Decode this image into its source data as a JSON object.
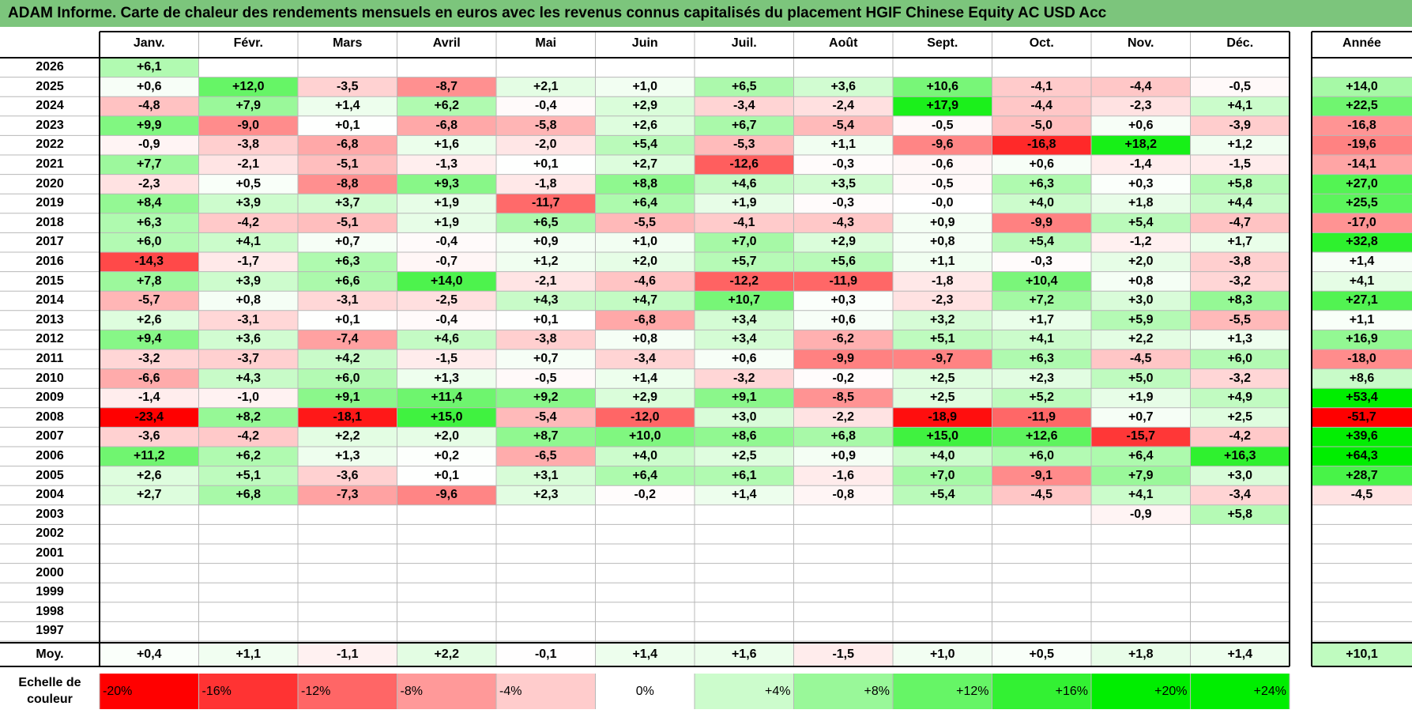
{
  "title": "ADAM Informe. Carte de chaleur des rendements mensuels en euros avec les revenus connus capitalisés du placement HGIF Chinese Equity AC USD Acc",
  "chart_data": {
    "type": "heatmap",
    "title": "ADAM Informe. Carte de chaleur des rendements mensuels en euros avec les revenus connus capitalisés du placement HGIF Chinese Equity AC USD Acc",
    "columns": [
      "Janv.",
      "Févr.",
      "Mars",
      "Avril",
      "Mai",
      "Juin",
      "Juil.",
      "Août",
      "Sept.",
      "Oct.",
      "Nov.",
      "Déc."
    ],
    "year_header": "Année",
    "rows": [
      {
        "year": "2026",
        "months": [
          "+6,1",
          "",
          "",
          "",
          "",
          "",
          "",
          "",
          "",
          "",
          "",
          ""
        ],
        "annual": ""
      },
      {
        "year": "2025",
        "months": [
          "+0,6",
          "+12,0",
          "-3,5",
          "-8,7",
          "+2,1",
          "+1,0",
          "+6,5",
          "+3,6",
          "+10,6",
          "-4,1",
          "-4,4",
          "-0,5"
        ],
        "annual": "+14,0"
      },
      {
        "year": "2024",
        "months": [
          "-4,8",
          "+7,9",
          "+1,4",
          "+6,2",
          "-0,4",
          "+2,9",
          "-3,4",
          "-2,4",
          "+17,9",
          "-4,4",
          "-2,3",
          "+4,1"
        ],
        "annual": "+22,5"
      },
      {
        "year": "2023",
        "months": [
          "+9,9",
          "-9,0",
          "+0,1",
          "-6,8",
          "-5,8",
          "+2,6",
          "+6,7",
          "-5,4",
          "-0,5",
          "-5,0",
          "+0,6",
          "-3,9"
        ],
        "annual": "-16,8"
      },
      {
        "year": "2022",
        "months": [
          "-0,9",
          "-3,8",
          "-6,8",
          "+1,6",
          "-2,0",
          "+5,4",
          "-5,3",
          "+1,1",
          "-9,6",
          "-16,8",
          "+18,2",
          "+1,2"
        ],
        "annual": "-19,6"
      },
      {
        "year": "2021",
        "months": [
          "+7,7",
          "-2,1",
          "-5,1",
          "-1,3",
          "+0,1",
          "+2,7",
          "-12,6",
          "-0,3",
          "-0,6",
          "+0,6",
          "-1,4",
          "-1,5"
        ],
        "annual": "-14,1"
      },
      {
        "year": "2020",
        "months": [
          "-2,3",
          "+0,5",
          "-8,8",
          "+9,3",
          "-1,8",
          "+8,8",
          "+4,6",
          "+3,5",
          "-0,5",
          "+6,3",
          "+0,3",
          "+5,8"
        ],
        "annual": "+27,0"
      },
      {
        "year": "2019",
        "months": [
          "+8,4",
          "+3,9",
          "+3,7",
          "+1,9",
          "-11,7",
          "+6,4",
          "+1,9",
          "-0,3",
          "-0,0",
          "+4,0",
          "+1,8",
          "+4,4"
        ],
        "annual": "+25,5"
      },
      {
        "year": "2018",
        "months": [
          "+6,3",
          "-4,2",
          "-5,1",
          "+1,9",
          "+6,5",
          "-5,5",
          "-4,1",
          "-4,3",
          "+0,9",
          "-9,9",
          "+5,4",
          "-4,7"
        ],
        "annual": "-17,0"
      },
      {
        "year": "2017",
        "months": [
          "+6,0",
          "+4,1",
          "+0,7",
          "-0,4",
          "+0,9",
          "+1,0",
          "+7,0",
          "+2,9",
          "+0,8",
          "+5,4",
          "-1,2",
          "+1,7"
        ],
        "annual": "+32,8"
      },
      {
        "year": "2016",
        "months": [
          "-14,3",
          "-1,7",
          "+6,3",
          "-0,7",
          "+1,2",
          "+2,0",
          "+5,7",
          "+5,6",
          "+1,1",
          "-0,3",
          "+2,0",
          "-3,8"
        ],
        "annual": "+1,4"
      },
      {
        "year": "2015",
        "months": [
          "+7,8",
          "+3,9",
          "+6,6",
          "+14,0",
          "-2,1",
          "-4,6",
          "-12,2",
          "-11,9",
          "-1,8",
          "+10,4",
          "+0,8",
          "-3,2"
        ],
        "annual": "+4,1"
      },
      {
        "year": "2014",
        "months": [
          "-5,7",
          "+0,8",
          "-3,1",
          "-2,5",
          "+4,3",
          "+4,7",
          "+10,7",
          "+0,3",
          "-2,3",
          "+7,2",
          "+3,0",
          "+8,3"
        ],
        "annual": "+27,1"
      },
      {
        "year": "2013",
        "months": [
          "+2,6",
          "-3,1",
          "+0,1",
          "-0,4",
          "+0,1",
          "-6,8",
          "+3,4",
          "+0,6",
          "+3,2",
          "+1,7",
          "+5,9",
          "-5,5"
        ],
        "annual": "+1,1"
      },
      {
        "year": "2012",
        "months": [
          "+9,4",
          "+3,6",
          "-7,4",
          "+4,6",
          "-3,8",
          "+0,8",
          "+3,4",
          "-6,2",
          "+5,1",
          "+4,1",
          "+2,2",
          "+1,3"
        ],
        "annual": "+16,9"
      },
      {
        "year": "2011",
        "months": [
          "-3,2",
          "-3,7",
          "+4,2",
          "-1,5",
          "+0,7",
          "-3,4",
          "+0,6",
          "-9,9",
          "-9,7",
          "+6,3",
          "-4,5",
          "+6,0"
        ],
        "annual": "-18,0"
      },
      {
        "year": "2010",
        "months": [
          "-6,6",
          "+4,3",
          "+6,0",
          "+1,3",
          "-0,5",
          "+1,4",
          "-3,2",
          "-0,2",
          "+2,5",
          "+2,3",
          "+5,0",
          "-3,2"
        ],
        "annual": "+8,6"
      },
      {
        "year": "2009",
        "months": [
          "-1,4",
          "-1,0",
          "+9,1",
          "+11,4",
          "+9,2",
          "+2,9",
          "+9,1",
          "-8,5",
          "+2,5",
          "+5,2",
          "+1,9",
          "+4,9"
        ],
        "annual": "+53,4"
      },
      {
        "year": "2008",
        "months": [
          "-23,4",
          "+8,2",
          "-18,1",
          "+15,0",
          "-5,4",
          "-12,0",
          "+3,0",
          "-2,2",
          "-18,9",
          "-11,9",
          "+0,7",
          "+2,5"
        ],
        "annual": "-51,7"
      },
      {
        "year": "2007",
        "months": [
          "-3,6",
          "-4,2",
          "+2,2",
          "+2,0",
          "+8,7",
          "+10,0",
          "+8,6",
          "+6,8",
          "+15,0",
          "+12,6",
          "-15,7",
          "-4,2"
        ],
        "annual": "+39,6"
      },
      {
        "year": "2006",
        "months": [
          "+11,2",
          "+6,2",
          "+1,3",
          "+0,2",
          "-6,5",
          "+4,0",
          "+2,5",
          "+0,9",
          "+4,0",
          "+6,0",
          "+6,4",
          "+16,3"
        ],
        "annual": "+64,3"
      },
      {
        "year": "2005",
        "months": [
          "+2,6",
          "+5,1",
          "-3,6",
          "+0,1",
          "+3,1",
          "+6,4",
          "+6,1",
          "-1,6",
          "+7,0",
          "-9,1",
          "+7,9",
          "+3,0"
        ],
        "annual": "+28,7"
      },
      {
        "year": "2004",
        "months": [
          "+2,7",
          "+6,8",
          "-7,3",
          "-9,6",
          "+2,3",
          "-0,2",
          "+1,4",
          "-0,8",
          "+5,4",
          "-4,5",
          "+4,1",
          "-3,4"
        ],
        "annual": "-4,5"
      },
      {
        "year": "2003",
        "months": [
          "",
          "",
          "",
          "",
          "",
          "",
          "",
          "",
          "",
          "",
          "-0,9",
          "+5,8"
        ],
        "annual": ""
      },
      {
        "year": "2002",
        "months": [
          "",
          "",
          "",
          "",
          "",
          "",
          "",
          "",
          "",
          "",
          "",
          ""
        ],
        "annual": ""
      },
      {
        "year": "2001",
        "months": [
          "",
          "",
          "",
          "",
          "",
          "",
          "",
          "",
          "",
          "",
          "",
          ""
        ],
        "annual": ""
      },
      {
        "year": "2000",
        "months": [
          "",
          "",
          "",
          "",
          "",
          "",
          "",
          "",
          "",
          "",
          "",
          ""
        ],
        "annual": ""
      },
      {
        "year": "1999",
        "months": [
          "",
          "",
          "",
          "",
          "",
          "",
          "",
          "",
          "",
          "",
          "",
          ""
        ],
        "annual": ""
      },
      {
        "year": "1998",
        "months": [
          "",
          "",
          "",
          "",
          "",
          "",
          "",
          "",
          "",
          "",
          "",
          ""
        ],
        "annual": ""
      },
      {
        "year": "1997",
        "months": [
          "",
          "",
          "",
          "",
          "",
          "",
          "",
          "",
          "",
          "",
          "",
          ""
        ],
        "annual": ""
      }
    ],
    "average": {
      "label": "Moy.",
      "months": [
        "+0,4",
        "+1,1",
        "-1,1",
        "+2,2",
        "-0,1",
        "+1,4",
        "+1,6",
        "-1,5",
        "+1,0",
        "+0,5",
        "+1,8",
        "+1,4"
      ],
      "annual": "+10,1"
    },
    "scale": {
      "label_line1": "Echelle de",
      "label_line2": "couleur",
      "steps": [
        {
          "label": "-20%",
          "value": -20
        },
        {
          "label": "-16%",
          "value": -16
        },
        {
          "label": "-12%",
          "value": -12
        },
        {
          "label": "-8%",
          "value": -8
        },
        {
          "label": "-4%",
          "value": -4
        },
        {
          "label": "0%",
          "value": 0
        },
        {
          "label": "+4%",
          "value": 4
        },
        {
          "label": "+8%",
          "value": 8
        },
        {
          "label": "+12%",
          "value": 12
        },
        {
          "label": "+16%",
          "value": 16
        },
        {
          "label": "+20%",
          "value": 20
        },
        {
          "label": "+24%",
          "value": 24
        }
      ]
    }
  },
  "colors": {
    "title_bg": "#7cc57c",
    "max_red": "#ff0000",
    "max_green": "#00ee00",
    "neutral": "#ffffff"
  }
}
